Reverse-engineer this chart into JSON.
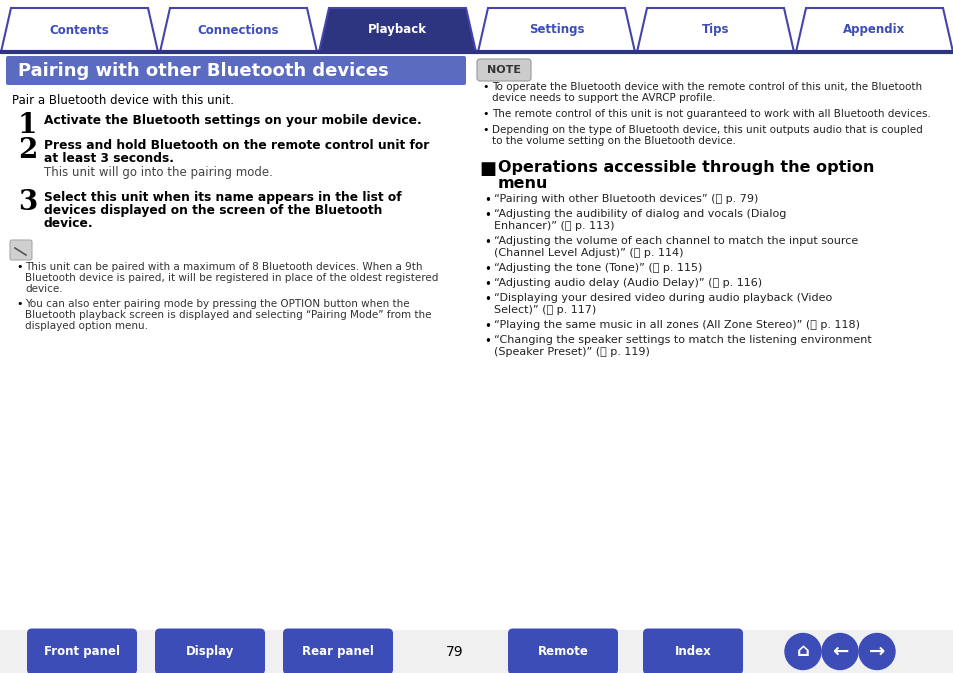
{
  "bg_color": "#ffffff",
  "tab_bar_color": "#2d3480",
  "tab_active_color": "#2d3480",
  "tab_border_color": "#4444aa",
  "tabs": [
    "Contents",
    "Connections",
    "Playback",
    "Settings",
    "Tips",
    "Appendix"
  ],
  "active_tab": 2,
  "header_bg": "#5b6bbf",
  "header_text": "Pairing with other Bluetooth devices",
  "header_text_color": "#ffffff",
  "intro_text": "Pair a Bluetooth device with this unit.",
  "steps": [
    {
      "num": "1",
      "bold": "Activate the Bluetooth settings on your mobile device.",
      "normal": ""
    },
    {
      "num": "2",
      "bold": "Press and hold Bluetooth on the remote control unit for\nat least 3 seconds.",
      "normal": "This unit will go into the pairing mode."
    },
    {
      "num": "3",
      "bold": "Select this unit when its name appears in the list of\ndevices displayed on the screen of the Bluetooth\ndevice.",
      "normal": ""
    }
  ],
  "note_bullets": [
    "This unit can be paired with a maximum of 8 Bluetooth devices. When a 9th\nBluetooth device is paired, it will be registered in place of the oldest registered\ndevice.",
    "You can also enter pairing mode by pressing the OPTION button when the\nBluetooth playback screen is displayed and selecting “Pairing Mode” from the\ndisplayed option menu."
  ],
  "note_label": "NOTE",
  "note_right_bullets": [
    "To operate the Bluetooth device with the remote control of this unit, the Bluetooth\ndevice needs to support the AVRCP profile.",
    "The remote control of this unit is not guaranteed to work with all Bluetooth devices.",
    "Depending on the type of Bluetooth device, this unit outputs audio that is coupled\nto the volume setting on the Bluetooth device."
  ],
  "option_bullets": [
    "“Pairing with other Bluetooth devices” (␡ p. 79)",
    "“Adjusting the audibility of dialog and vocals (Dialog\nEnhancer)” (␡ p. 113)",
    "“Adjusting the volume of each channel to match the input source\n(Channel Level Adjust)” (␡ p. 114)",
    "“Adjusting the tone (Tone)” (␡ p. 115)",
    "“Adjusting audio delay (Audio Delay)” (␡ p. 116)",
    "“Displaying your desired video during audio playback (Video\nSelect)” (␡ p. 117)",
    "“Playing the same music in all zones (All Zone Stereo)” (␡ p. 118)",
    "“Changing the speaker settings to match the listening environment\n(Speaker Preset)” (␡ p. 119)"
  ],
  "bottom_buttons": [
    "Front panel",
    "Display",
    "Rear panel",
    "Remote",
    "Index"
  ],
  "page_number": "79",
  "bottom_btn_color": "#3d4db7",
  "text_color": "#000000",
  "mid_blue": "#3d4db7"
}
